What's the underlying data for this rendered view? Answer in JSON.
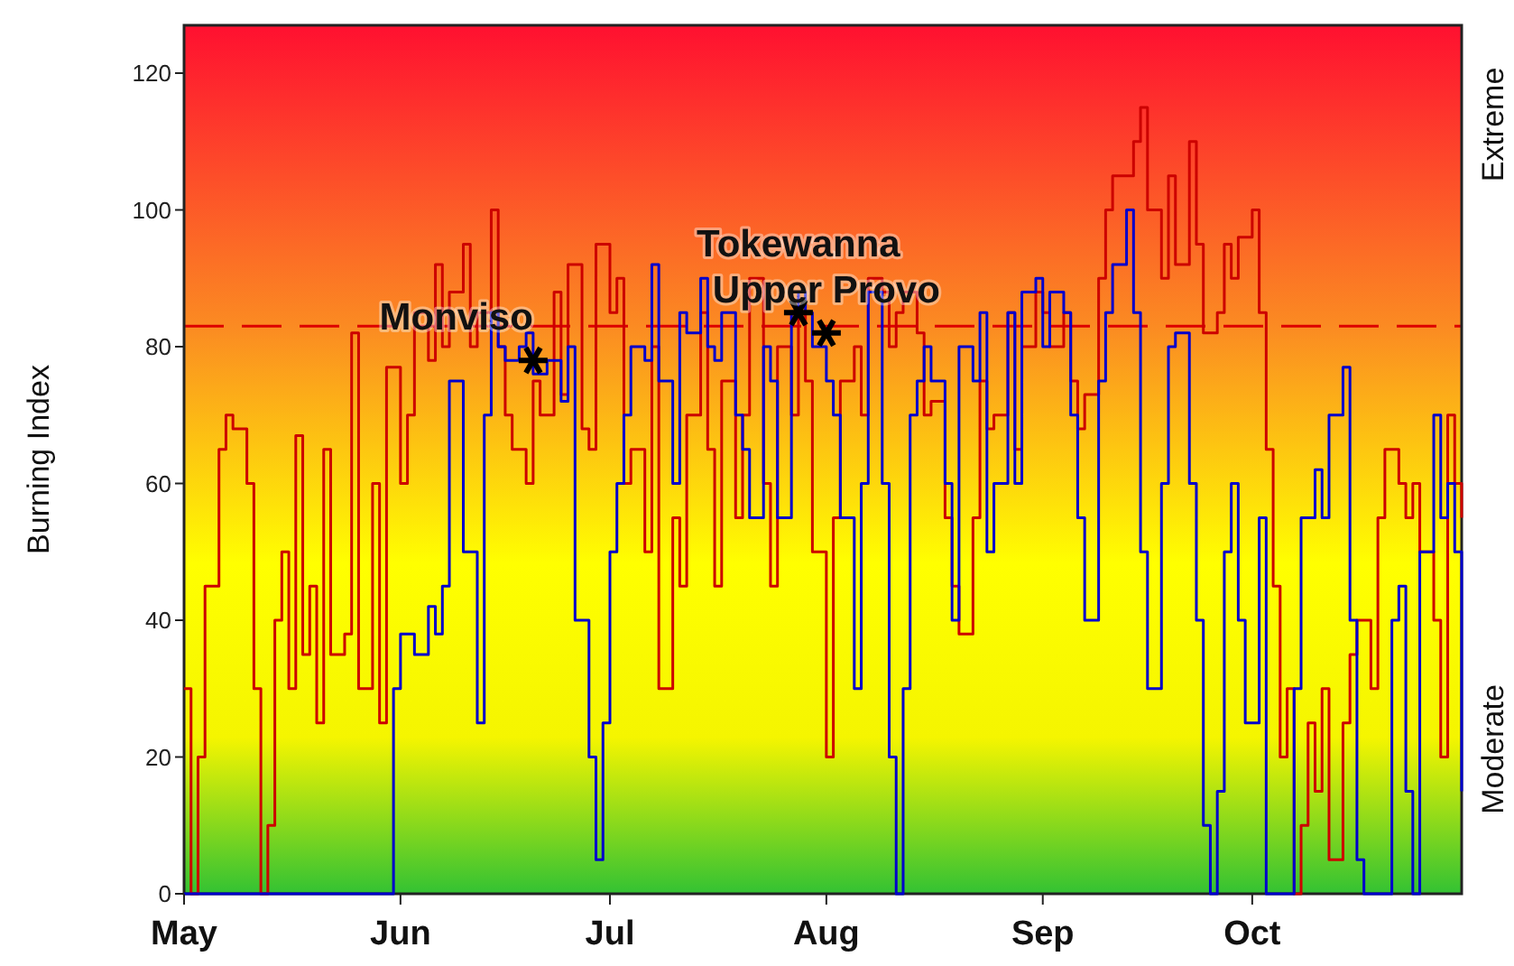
{
  "chart_data": {
    "type": "step",
    "ylabel": "Burning Index",
    "xlim": [
      "--05-01",
      "--10-31"
    ],
    "xticks": [
      {
        "value": "--05-01",
        "label": "May"
      },
      {
        "value": "--06-01",
        "label": "Jun"
      },
      {
        "value": "--07-01",
        "label": "Jul"
      },
      {
        "value": "--08-01",
        "label": "Aug"
      },
      {
        "value": "--09-01",
        "label": "Sep"
      },
      {
        "value": "--10-01",
        "label": "Oct"
      }
    ],
    "ylim": [
      0,
      127
    ],
    "yticks": [
      0,
      20,
      40,
      60,
      80,
      100,
      120
    ],
    "grid": false,
    "line_style": "solid",
    "ref_lines": [
      {
        "axis": "y",
        "value": 83,
        "color": "#dd0000",
        "line_style": "dashed"
      }
    ],
    "series": [
      {
        "color": "#cc0000",
        "x": [
          "--05-01",
          "--05-02",
          "--05-03",
          "--05-04",
          "--05-06",
          "--05-07",
          "--05-08",
          "--05-10",
          "--05-11",
          "--05-12",
          "--05-13",
          "--05-14",
          "--05-15",
          "--05-16",
          "--05-17",
          "--05-18",
          "--05-19",
          "--05-20",
          "--05-21",
          "--05-22",
          "--05-24",
          "--05-25",
          "--05-26",
          "--05-28",
          "--05-29",
          "--05-30",
          "--06-01",
          "--06-02",
          "--06-03",
          "--06-05",
          "--06-06",
          "--06-07",
          "--06-08",
          "--06-10",
          "--06-11",
          "--06-12",
          "--06-14",
          "--06-15",
          "--06-16",
          "--06-17",
          "--06-19",
          "--06-20",
          "--06-21",
          "--06-23",
          "--06-24",
          "--06-25",
          "--06-27",
          "--06-28",
          "--06-29",
          "--07-01",
          "--07-02",
          "--07-03",
          "--07-04",
          "--07-06",
          "--07-07",
          "--07-08",
          "--07-10",
          "--07-11",
          "--07-12",
          "--07-14",
          "--07-15",
          "--07-16",
          "--07-17",
          "--07-19",
          "--07-20",
          "--07-21",
          "--07-23",
          "--07-24",
          "--07-25",
          "--07-27",
          "--07-28",
          "--07-29",
          "--07-30",
          "--08-01",
          "--08-02",
          "--08-03",
          "--08-05",
          "--08-06",
          "--08-07",
          "--08-09",
          "--08-10",
          "--08-11",
          "--08-12",
          "--08-14",
          "--08-15",
          "--08-16",
          "--08-18",
          "--08-19",
          "--08-20",
          "--08-22",
          "--08-23",
          "--08-24",
          "--08-25",
          "--08-27",
          "--08-28",
          "--08-29",
          "--08-31",
          "--09-01",
          "--09-02",
          "--09-04",
          "--09-05",
          "--09-06",
          "--09-07",
          "--09-09",
          "--09-10",
          "--09-11",
          "--09-13",
          "--09-14",
          "--09-15",
          "--09-16",
          "--09-18",
          "--09-19",
          "--09-20",
          "--09-22",
          "--09-23",
          "--09-24",
          "--09-26",
          "--09-27",
          "--09-28",
          "--09-29",
          "--10-01",
          "--10-02",
          "--10-03",
          "--10-04",
          "--10-05",
          "--10-06",
          "--10-07",
          "--10-08",
          "--10-09",
          "--10-10",
          "--10-11",
          "--10-12",
          "--10-14",
          "--10-15",
          "--10-16",
          "--10-18",
          "--10-19",
          "--10-20",
          "--10-22",
          "--10-23",
          "--10-24",
          "--10-25",
          "--10-27",
          "--10-28",
          "--10-29",
          "--10-30",
          "--10-31"
        ],
        "values": [
          30,
          0,
          20,
          45,
          65,
          70,
          68,
          60,
          30,
          0,
          10,
          40,
          50,
          30,
          67,
          35,
          45,
          25,
          65,
          35,
          38,
          82,
          30,
          60,
          25,
          77,
          60,
          70,
          85,
          78,
          92,
          80,
          88,
          95,
          80,
          85,
          100,
          80,
          70,
          65,
          60,
          75,
          70,
          88,
          73,
          92,
          68,
          65,
          95,
          85,
          90,
          60,
          65,
          50,
          80,
          30,
          55,
          45,
          70,
          85,
          65,
          45,
          75,
          55,
          70,
          90,
          60,
          45,
          80,
          70,
          85,
          75,
          50,
          20,
          55,
          75,
          80,
          70,
          90,
          88,
          80,
          85,
          88,
          82,
          70,
          72,
          55,
          45,
          38,
          55,
          75,
          68,
          70,
          85,
          65,
          80,
          88,
          85,
          80,
          85,
          75,
          68,
          73,
          90,
          100,
          105,
          105,
          110,
          115,
          100,
          90,
          105,
          92,
          110,
          95,
          82,
          85,
          95,
          90,
          96,
          100,
          85,
          65,
          45,
          20,
          30,
          0,
          10,
          25,
          15,
          30,
          5,
          25,
          35,
          40,
          30,
          55,
          65,
          60,
          55,
          60,
          50,
          40,
          20,
          70,
          60,
          55
        ]
      },
      {
        "color": "#0000cc",
        "x": [
          "--05-01",
          "--05-30",
          "--05-31",
          "--06-01",
          "--06-03",
          "--06-05",
          "--06-06",
          "--06-07",
          "--06-08",
          "--06-10",
          "--06-12",
          "--06-13",
          "--06-14",
          "--06-15",
          "--06-16",
          "--06-18",
          "--06-19",
          "--06-20",
          "--06-22",
          "--06-24",
          "--06-25",
          "--06-26",
          "--06-28",
          "--06-29",
          "--06-30",
          "--07-01",
          "--07-02",
          "--07-03",
          "--07-04",
          "--07-06",
          "--07-07",
          "--07-08",
          "--07-10",
          "--07-11",
          "--07-12",
          "--07-14",
          "--07-15",
          "--07-16",
          "--07-17",
          "--07-19",
          "--07-20",
          "--07-21",
          "--07-23",
          "--07-24",
          "--07-25",
          "--07-27",
          "--07-28",
          "--07-29",
          "--07-30",
          "--08-01",
          "--08-02",
          "--08-03",
          "--08-05",
          "--08-06",
          "--08-07",
          "--08-09",
          "--08-10",
          "--08-11",
          "--08-12",
          "--08-13",
          "--08-14",
          "--08-15",
          "--08-16",
          "--08-18",
          "--08-19",
          "--08-20",
          "--08-22",
          "--08-23",
          "--08-24",
          "--08-25",
          "--08-27",
          "--08-28",
          "--08-29",
          "--08-31",
          "--09-01",
          "--09-02",
          "--09-04",
          "--09-05",
          "--09-06",
          "--09-07",
          "--09-09",
          "--09-10",
          "--09-11",
          "--09-13",
          "--09-14",
          "--09-15",
          "--09-16",
          "--09-18",
          "--09-19",
          "--09-20",
          "--09-22",
          "--09-23",
          "--09-24",
          "--09-25",
          "--09-26",
          "--09-27",
          "--09-28",
          "--09-29",
          "--09-30",
          "--10-02",
          "--10-03",
          "--10-07",
          "--10-08",
          "--10-10",
          "--10-11",
          "--10-12",
          "--10-14",
          "--10-15",
          "--10-16",
          "--10-17",
          "--10-20",
          "--10-21",
          "--10-22",
          "--10-23",
          "--10-24",
          "--10-25",
          "--10-27",
          "--10-28",
          "--10-29",
          "--10-30",
          "--10-31"
        ],
        "values": [
          0,
          0,
          30,
          38,
          35,
          42,
          38,
          45,
          75,
          50,
          25,
          70,
          85,
          80,
          78,
          80,
          82,
          76,
          78,
          72,
          80,
          40,
          20,
          5,
          25,
          50,
          60,
          70,
          80,
          78,
          92,
          75,
          60,
          85,
          82,
          90,
          80,
          78,
          85,
          70,
          65,
          55,
          80,
          75,
          55,
          85,
          88,
          85,
          80,
          75,
          70,
          55,
          30,
          60,
          88,
          60,
          20,
          0,
          30,
          70,
          75,
          80,
          75,
          60,
          40,
          80,
          75,
          85,
          50,
          60,
          85,
          60,
          88,
          90,
          80,
          88,
          85,
          70,
          55,
          40,
          75,
          85,
          92,
          100,
          85,
          50,
          30,
          60,
          80,
          82,
          60,
          40,
          10,
          0,
          15,
          50,
          60,
          40,
          25,
          55,
          0,
          30,
          55,
          62,
          55,
          70,
          77,
          40,
          5,
          0,
          0,
          40,
          45,
          15,
          0,
          50,
          70,
          55,
          60,
          50,
          15
        ]
      },
      {
        "type": "scatter",
        "color": "#000000",
        "marker": "cross",
        "x": [
          "--06-20",
          "--07-28",
          "--08-01"
        ],
        "values": [
          78,
          85,
          82
        ]
      }
    ],
    "annotations": [
      "Extreme",
      "Moderate",
      {
        "text": "Monviso",
        "x": "--06-20",
        "y": 78
      },
      {
        "text": "Tokewanna",
        "x": "--07-28",
        "y": 85
      },
      {
        "text": "Upper Provo",
        "x": "--08-01",
        "y": 82
      }
    ]
  }
}
